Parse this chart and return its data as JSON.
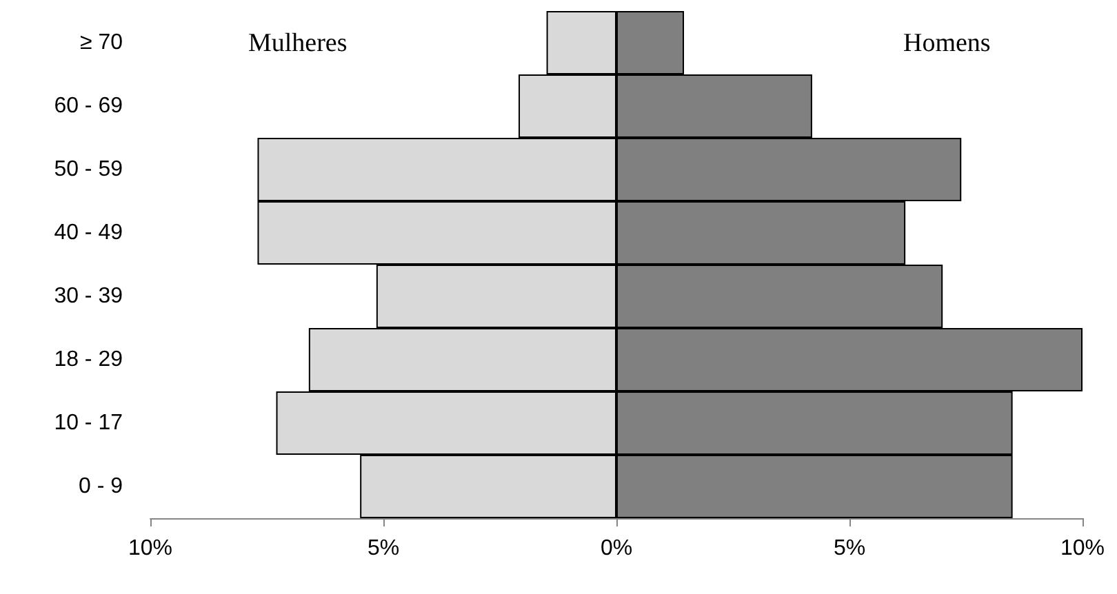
{
  "chart_data": [
    {
      "type": "bar",
      "orientation": "horizontal",
      "categories": [
        "≥ 70",
        "60 - 69",
        "50 - 59",
        "40 - 49",
        "30 - 39",
        "18 - 29",
        "10 - 17",
        "0 - 9"
      ],
      "series": [
        {
          "name": "Mulheres",
          "color": "#d9d9d9",
          "values": [
            1.5,
            2.1,
            7.7,
            7.7,
            5.15,
            6.6,
            7.3,
            5.5
          ]
        }
      ],
      "xlim": [
        10,
        0
      ],
      "xticks": [
        {
          "value": 10,
          "label": "10%"
        },
        {
          "value": 5,
          "label": "5%"
        },
        {
          "value": 0,
          "label": "0%"
        }
      ],
      "grid": false,
      "legend": false
    },
    {
      "type": "bar",
      "orientation": "horizontal",
      "categories": [
        null,
        null,
        null,
        null,
        null,
        null,
        null,
        null
      ],
      "series": [
        {
          "name": "Homens",
          "color": "#808080",
          "values": [
            1.45,
            4.2,
            7.4,
            6.2,
            7.0,
            10.0,
            8.5,
            8.5
          ]
        }
      ],
      "xlim": [
        0,
        10
      ],
      "xticks": [
        {
          "value": 0,
          "label": null
        },
        {
          "value": 5,
          "label": "5%"
        },
        {
          "value": 10,
          "label": "10%"
        }
      ],
      "tick_labels": "x",
      "grid": false,
      "legend": false
    }
  ]
}
